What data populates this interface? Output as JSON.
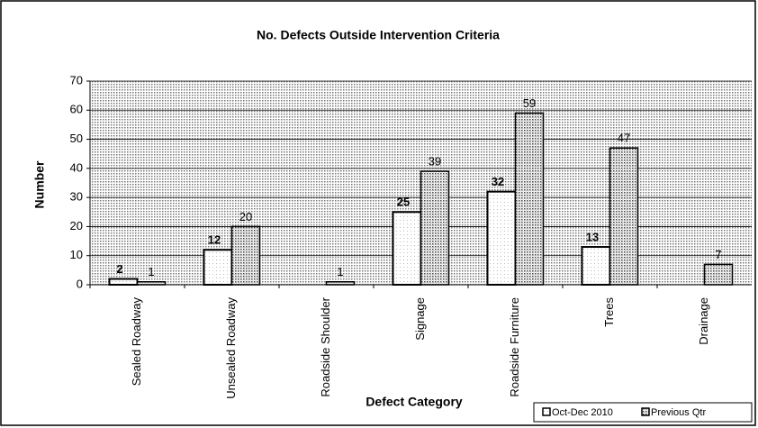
{
  "chart_data": {
    "type": "bar",
    "title": "No. Defects Outside Intervention Criteria",
    "y_label": "Number",
    "x_label": "Defect Category",
    "categories": [
      "Sealed Roadway",
      "Unsealed Roadway",
      "Roadside Shoulder",
      "Signage",
      "Roadside Furniture",
      "Trees",
      "Drainage"
    ],
    "series": [
      {
        "name": "Oct-Dec 2010",
        "color": "#ffffff",
        "values": [
          2,
          12,
          null,
          25,
          32,
          13,
          null
        ]
      },
      {
        "name": "Previous Qtr",
        "color": "#d8d8d8",
        "values": [
          1,
          20,
          1,
          39,
          59,
          47,
          7
        ]
      }
    ],
    "ylim": [
      0,
      70
    ],
    "yticks": [
      0,
      10,
      20,
      30,
      40,
      50,
      60,
      70
    ],
    "grid": true,
    "legend": "bottom-right"
  }
}
